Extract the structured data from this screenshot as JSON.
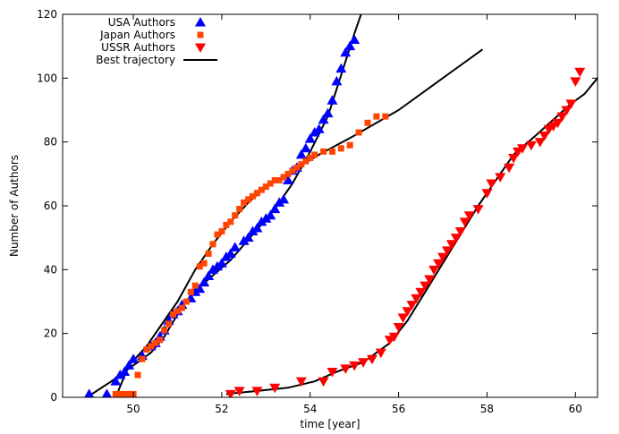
{
  "chart_data": {
    "type": "scatter",
    "xlabel": "time [year]",
    "ylabel": "Number of Authors",
    "xlim": [
      48.4,
      60.5
    ],
    "ylim": [
      0,
      120
    ],
    "xticks": [
      50,
      52,
      54,
      56,
      58,
      60
    ],
    "yticks": [
      0,
      20,
      40,
      60,
      80,
      100,
      120
    ],
    "legend_position": "top-left",
    "grid": false,
    "series": [
      {
        "name": "USA Authors",
        "color": "#0000ff",
        "marker": "triangle-up",
        "points": [
          [
            49.0,
            1
          ],
          [
            49.4,
            1
          ],
          [
            49.6,
            5
          ],
          [
            49.7,
            7
          ],
          [
            49.8,
            8
          ],
          [
            49.9,
            10
          ],
          [
            50.0,
            12
          ],
          [
            50.2,
            13
          ],
          [
            50.4,
            16
          ],
          [
            50.5,
            17
          ],
          [
            50.6,
            19
          ],
          [
            50.7,
            21
          ],
          [
            50.8,
            24
          ],
          [
            50.9,
            26
          ],
          [
            51.0,
            27
          ],
          [
            51.1,
            29
          ],
          [
            51.3,
            31
          ],
          [
            51.4,
            33
          ],
          [
            51.5,
            34
          ],
          [
            51.6,
            36
          ],
          [
            51.7,
            38
          ],
          [
            51.8,
            40
          ],
          [
            51.9,
            41
          ],
          [
            52.0,
            42
          ],
          [
            52.1,
            44
          ],
          [
            52.2,
            45
          ],
          [
            52.3,
            47
          ],
          [
            52.5,
            49
          ],
          [
            52.6,
            50
          ],
          [
            52.7,
            52
          ],
          [
            52.8,
            53
          ],
          [
            52.9,
            55
          ],
          [
            53.0,
            56
          ],
          [
            53.1,
            57
          ],
          [
            53.2,
            59
          ],
          [
            53.3,
            61
          ],
          [
            53.4,
            62
          ],
          [
            53.5,
            68
          ],
          [
            53.6,
            71
          ],
          [
            53.7,
            72
          ],
          [
            53.8,
            76
          ],
          [
            53.9,
            78
          ],
          [
            54.0,
            81
          ],
          [
            54.1,
            83
          ],
          [
            54.2,
            84
          ],
          [
            54.3,
            87
          ],
          [
            54.4,
            89
          ],
          [
            54.5,
            93
          ],
          [
            54.6,
            99
          ],
          [
            54.7,
            103
          ],
          [
            54.8,
            108
          ],
          [
            54.9,
            110
          ],
          [
            55.0,
            112
          ]
        ]
      },
      {
        "name": "Japan Authors",
        "color": "#ff4500",
        "marker": "square",
        "points": [
          [
            49.6,
            1
          ],
          [
            49.7,
            1
          ],
          [
            49.8,
            1
          ],
          [
            49.9,
            1
          ],
          [
            50.0,
            1
          ],
          [
            50.1,
            7
          ],
          [
            50.2,
            12
          ],
          [
            50.3,
            15
          ],
          [
            50.4,
            16
          ],
          [
            50.5,
            17
          ],
          [
            50.6,
            18
          ],
          [
            50.7,
            21
          ],
          [
            50.8,
            23
          ],
          [
            50.9,
            26
          ],
          [
            51.0,
            27
          ],
          [
            51.1,
            28
          ],
          [
            51.2,
            30
          ],
          [
            51.3,
            33
          ],
          [
            51.4,
            35
          ],
          [
            51.5,
            41
          ],
          [
            51.6,
            42
          ],
          [
            51.7,
            45
          ],
          [
            51.8,
            48
          ],
          [
            51.9,
            51
          ],
          [
            52.0,
            52
          ],
          [
            52.1,
            54
          ],
          [
            52.2,
            55
          ],
          [
            52.3,
            57
          ],
          [
            52.4,
            59
          ],
          [
            52.5,
            61
          ],
          [
            52.6,
            62
          ],
          [
            52.7,
            63
          ],
          [
            52.8,
            64
          ],
          [
            52.9,
            65
          ],
          [
            53.0,
            66
          ],
          [
            53.1,
            67
          ],
          [
            53.2,
            68
          ],
          [
            53.3,
            68
          ],
          [
            53.4,
            69
          ],
          [
            53.5,
            70
          ],
          [
            53.6,
            71
          ],
          [
            53.7,
            72
          ],
          [
            53.8,
            73
          ],
          [
            53.9,
            74
          ],
          [
            54.0,
            75
          ],
          [
            54.1,
            76
          ],
          [
            54.3,
            77
          ],
          [
            54.5,
            77
          ],
          [
            54.7,
            78
          ],
          [
            54.9,
            79
          ],
          [
            55.1,
            83
          ],
          [
            55.3,
            86
          ],
          [
            55.5,
            88
          ],
          [
            55.7,
            88
          ]
        ]
      },
      {
        "name": "USSR Authors",
        "color": "#ff0000",
        "marker": "triangle-down",
        "points": [
          [
            52.2,
            1
          ],
          [
            52.4,
            2
          ],
          [
            52.8,
            2
          ],
          [
            53.2,
            3
          ],
          [
            53.8,
            5
          ],
          [
            54.3,
            5
          ],
          [
            54.5,
            8
          ],
          [
            54.8,
            9
          ],
          [
            55.0,
            10
          ],
          [
            55.2,
            11
          ],
          [
            55.4,
            12
          ],
          [
            55.6,
            14
          ],
          [
            55.8,
            18
          ],
          [
            55.9,
            19
          ],
          [
            56.0,
            22
          ],
          [
            56.1,
            25
          ],
          [
            56.2,
            27
          ],
          [
            56.3,
            29
          ],
          [
            56.4,
            31
          ],
          [
            56.5,
            33
          ],
          [
            56.6,
            35
          ],
          [
            56.7,
            37
          ],
          [
            56.8,
            40
          ],
          [
            56.9,
            42
          ],
          [
            57.0,
            44
          ],
          [
            57.1,
            46
          ],
          [
            57.2,
            48
          ],
          [
            57.3,
            50
          ],
          [
            57.4,
            52
          ],
          [
            57.5,
            55
          ],
          [
            57.6,
            57
          ],
          [
            57.8,
            59
          ],
          [
            58.0,
            64
          ],
          [
            58.1,
            67
          ],
          [
            58.3,
            69
          ],
          [
            58.5,
            72
          ],
          [
            58.6,
            75
          ],
          [
            58.7,
            77
          ],
          [
            58.8,
            78
          ],
          [
            59.0,
            79
          ],
          [
            59.2,
            80
          ],
          [
            59.3,
            82
          ],
          [
            59.4,
            84
          ],
          [
            59.5,
            85
          ],
          [
            59.6,
            86
          ],
          [
            59.7,
            88
          ],
          [
            59.8,
            90
          ],
          [
            59.9,
            92
          ],
          [
            60.0,
            99
          ],
          [
            60.1,
            102
          ]
        ]
      }
    ],
    "lines": [
      {
        "name": "Best trajectory",
        "color": "#000000",
        "segments": [
          [
            [
              48.95,
              0
            ],
            [
              49.5,
              5
            ],
            [
              50.0,
              10
            ],
            [
              50.4,
              14
            ],
            [
              50.7,
              19
            ],
            [
              51.0,
              26
            ],
            [
              51.3,
              32
            ],
            [
              51.7,
              37
            ],
            [
              52.2,
              43
            ],
            [
              52.7,
              51
            ],
            [
              53.2,
              59
            ],
            [
              53.6,
              67
            ],
            [
              54.0,
              77
            ],
            [
              54.4,
              88
            ],
            [
              54.7,
              101
            ],
            [
              55.0,
              114
            ],
            [
              55.2,
              122
            ]
          ],
          [
            [
              49.6,
              0
            ],
            [
              49.9,
              10
            ],
            [
              50.3,
              16
            ],
            [
              50.6,
              22
            ],
            [
              51.0,
              30
            ],
            [
              51.4,
              40
            ],
            [
              51.8,
              48
            ],
            [
              52.2,
              55
            ],
            [
              52.6,
              61
            ],
            [
              53.0,
              66
            ],
            [
              53.6,
              71
            ],
            [
              54.2,
              76
            ],
            [
              55.0,
              82
            ],
            [
              56.0,
              90
            ],
            [
              57.0,
              100
            ],
            [
              57.9,
              109
            ]
          ],
          [
            [
              52.1,
              1
            ],
            [
              52.8,
              2
            ],
            [
              53.5,
              3
            ],
            [
              54.1,
              5
            ],
            [
              54.6,
              8
            ],
            [
              55.2,
              11
            ],
            [
              55.8,
              17
            ],
            [
              56.2,
              24
            ],
            [
              56.6,
              33
            ],
            [
              57.0,
              42
            ],
            [
              57.4,
              51
            ],
            [
              57.8,
              60
            ],
            [
              58.2,
              68
            ],
            [
              58.6,
              76
            ],
            [
              59.1,
              82
            ],
            [
              59.5,
              87
            ],
            [
              59.9,
              92
            ],
            [
              60.2,
              95
            ],
            [
              60.5,
              100
            ]
          ]
        ]
      }
    ]
  }
}
